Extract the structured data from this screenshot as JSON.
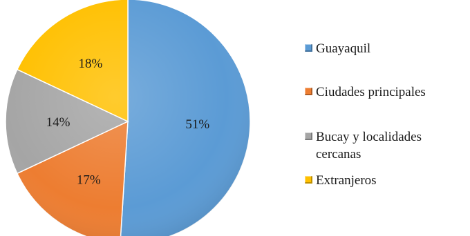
{
  "chart_data": {
    "type": "pie",
    "title": "",
    "legend_position": "right",
    "slices": [
      {
        "name": "Guayaquil",
        "value": 51,
        "label": "51%",
        "color": "#5b9bd5"
      },
      {
        "name": "Ciudades principales",
        "value": 17,
        "label": "17%",
        "color": "#ed7d31"
      },
      {
        "name": "Bucay y localidades cercanas",
        "value": 14,
        "label": "14%",
        "color": "#a5a5a5"
      },
      {
        "name": "Extranjeros",
        "value": 18,
        "label": "18%",
        "color": "#ffc000"
      }
    ]
  }
}
